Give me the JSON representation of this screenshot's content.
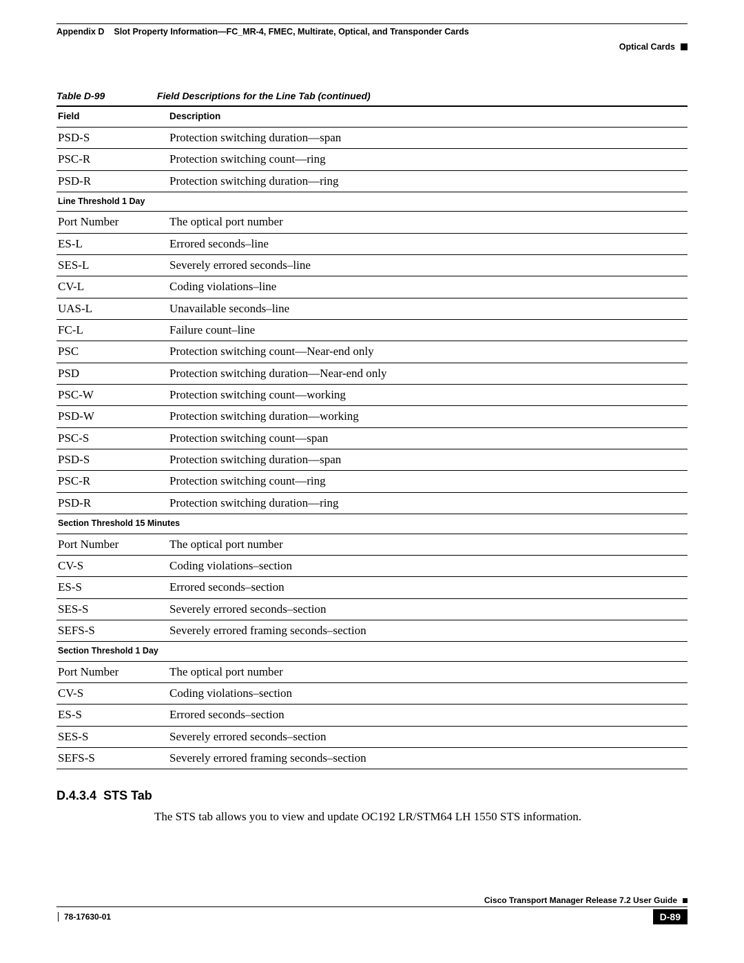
{
  "header": {
    "appendix": "Appendix D",
    "title": "Slot Property Information—FC_MR-4, FMEC, Multirate, Optical, and Transponder Cards",
    "section": "Optical Cards"
  },
  "table": {
    "caption_number": "Table D-99",
    "caption_text": "Field Descriptions for the Line Tab (continued)",
    "columns": {
      "field": "Field",
      "description": "Description"
    },
    "groups": [
      {
        "subhead": null,
        "rows": [
          {
            "field": "PSD-S",
            "desc": "Protection switching duration—span"
          },
          {
            "field": "PSC-R",
            "desc": "Protection switching count—ring"
          },
          {
            "field": "PSD-R",
            "desc": "Protection switching duration—ring"
          }
        ]
      },
      {
        "subhead": "Line Threshold 1 Day",
        "rows": [
          {
            "field": "Port Number",
            "desc": "The optical port number"
          },
          {
            "field": "ES-L",
            "desc": "Errored seconds–line"
          },
          {
            "field": "SES-L",
            "desc": "Severely errored seconds–line"
          },
          {
            "field": "CV-L",
            "desc": "Coding violations–line"
          },
          {
            "field": "UAS-L",
            "desc": "Unavailable seconds–line"
          },
          {
            "field": "FC-L",
            "desc": "Failure count–line"
          },
          {
            "field": "PSC",
            "desc": "Protection switching count—Near-end only"
          },
          {
            "field": "PSD",
            "desc": "Protection switching duration—Near-end only"
          },
          {
            "field": "PSC-W",
            "desc": "Protection switching count—working"
          },
          {
            "field": "PSD-W",
            "desc": "Protection switching duration—working"
          },
          {
            "field": "PSC-S",
            "desc": "Protection switching count—span"
          },
          {
            "field": "PSD-S",
            "desc": "Protection switching duration—span"
          },
          {
            "field": "PSC-R",
            "desc": "Protection switching count—ring"
          },
          {
            "field": "PSD-R",
            "desc": "Protection switching duration—ring"
          }
        ]
      },
      {
        "subhead": "Section Threshold 15 Minutes",
        "rows": [
          {
            "field": "Port Number",
            "desc": "The optical port number"
          },
          {
            "field": "CV-S",
            "desc": "Coding violations–section"
          },
          {
            "field": "ES-S",
            "desc": "Errored seconds–section"
          },
          {
            "field": "SES-S",
            "desc": "Severely errored seconds–section"
          },
          {
            "field": "SEFS-S",
            "desc": "Severely errored framing seconds–section"
          }
        ]
      },
      {
        "subhead": "Section Threshold 1 Day",
        "rows": [
          {
            "field": "Port Number",
            "desc": "The optical port number"
          },
          {
            "field": "CV-S",
            "desc": "Coding violations–section"
          },
          {
            "field": "ES-S",
            "desc": "Errored seconds–section"
          },
          {
            "field": "SES-S",
            "desc": "Severely errored seconds–section"
          },
          {
            "field": "SEFS-S",
            "desc": "Severely errored framing seconds–section"
          }
        ]
      }
    ]
  },
  "subsection": {
    "number": "D.4.3.4",
    "title": "STS Tab",
    "body": "The STS tab allows you to view and update OC192 LR/STM64 LH 1550 STS information."
  },
  "footer": {
    "guide": "Cisco Transport Manager Release 7.2 User Guide",
    "docnum": "78-17630-01",
    "page": "D-89"
  }
}
